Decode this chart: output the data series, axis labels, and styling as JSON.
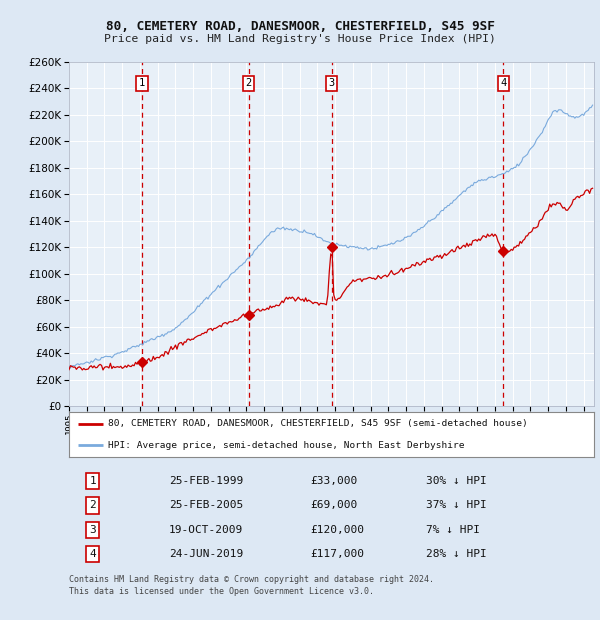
{
  "title1": "80, CEMETERY ROAD, DANESMOOR, CHESTERFIELD, S45 9SF",
  "title2": "Price paid vs. HM Land Registry's House Price Index (HPI)",
  "bg_color": "#dde8f4",
  "plot_bg": "#e8f0f8",
  "grid_color": "#ffffff",
  "hpi_color": "#7aaadd",
  "price_color": "#cc0000",
  "marker_color": "#cc0000",
  "sale_dates": [
    1999.12,
    2005.12,
    2009.8,
    2019.48
  ],
  "sale_prices": [
    33000,
    69000,
    120000,
    117000
  ],
  "sale_labels": [
    "1",
    "2",
    "3",
    "4"
  ],
  "ylim": [
    0,
    260000
  ],
  "yticks": [
    0,
    20000,
    40000,
    60000,
    80000,
    100000,
    120000,
    140000,
    160000,
    180000,
    200000,
    220000,
    240000,
    260000
  ],
  "xlim": [
    1995.0,
    2024.58
  ],
  "legend_entries": [
    "80, CEMETERY ROAD, DANESMOOR, CHESTERFIELD, S45 9SF (semi-detached house)",
    "HPI: Average price, semi-detached house, North East Derbyshire"
  ],
  "table_rows": [
    [
      "1",
      "25-FEB-1999",
      "£33,000",
      "30% ↓ HPI"
    ],
    [
      "2",
      "25-FEB-2005",
      "£69,000",
      "37% ↓ HPI"
    ],
    [
      "3",
      "19-OCT-2009",
      "£120,000",
      "7% ↓ HPI"
    ],
    [
      "4",
      "24-JUN-2019",
      "£117,000",
      "28% ↓ HPI"
    ]
  ],
  "footnote": "Contains HM Land Registry data © Crown copyright and database right 2024.\nThis data is licensed under the Open Government Licence v3.0."
}
